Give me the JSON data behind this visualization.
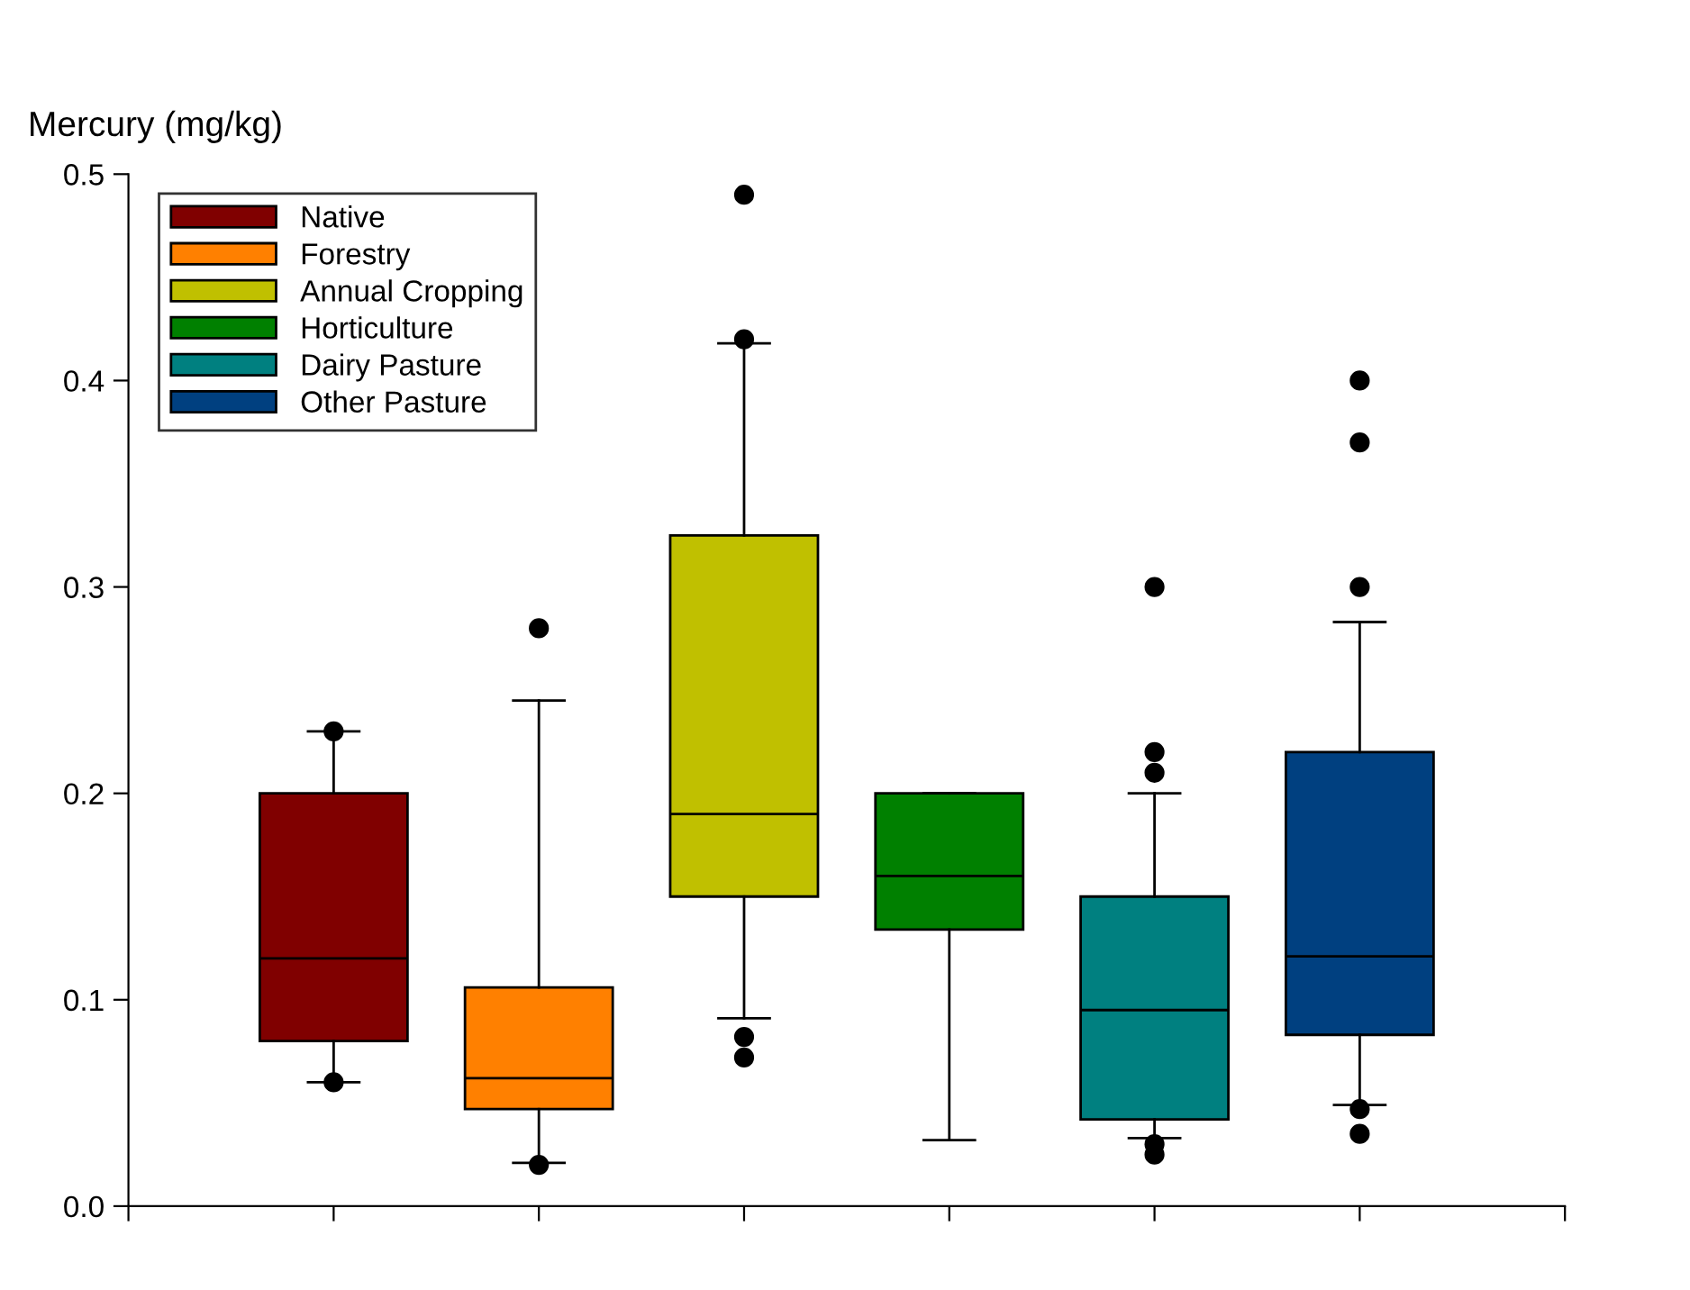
{
  "chart_data": {
    "type": "box",
    "ylabel": "Mercury (mg/kg)",
    "categories": [
      null
    ],
    "ylim": [
      0,
      0.5
    ],
    "yticks": [
      {
        "value": 0,
        "label": "0.0"
      },
      0.1,
      0.2,
      0.3,
      0.4,
      0.5
    ],
    "grid": false,
    "legend": "top left",
    "marker": "circle",
    "series": [
      {
        "name": "Native",
        "color": "#800000",
        "boxes": [
          {
            "low": 0.06,
            "q1": 0.08,
            "median": 0.12,
            "q3": 0.2,
            "high": 0.23,
            "outliers": [
              0.23,
              0.06
            ]
          }
        ]
      },
      {
        "name": "Forestry",
        "color": "#ff8000",
        "boxes": [
          {
            "low": 0.021,
            "q1": 0.047,
            "median": 0.062,
            "q3": 0.106,
            "high": 0.245,
            "outliers": [
              0.28,
              0.02
            ]
          }
        ]
      },
      {
        "name": "Annual Cropping",
        "color": "#c0c000",
        "boxes": [
          {
            "low": 0.091,
            "q1": 0.15,
            "median": 0.19,
            "q3": 0.325,
            "high": 0.418,
            "outliers": [
              0.49,
              0.42,
              0.082,
              0.072
            ]
          }
        ]
      },
      {
        "name": "Horticulture",
        "color": "#008000",
        "boxes": [
          {
            "low": 0.032,
            "q1": 0.134,
            "median": 0.16,
            "q3": 0.2,
            "high": 0.2
          }
        ]
      },
      {
        "name": "Dairy Pasture",
        "color": "#008080",
        "boxes": [
          {
            "low": 0.033,
            "q1": 0.042,
            "median": 0.095,
            "q3": 0.15,
            "high": 0.2,
            "outliers": [
              0.3,
              0.22,
              0.21,
              0.03,
              0.025
            ]
          }
        ]
      },
      {
        "name": "Other Pasture",
        "color": "#004080",
        "boxes": [
          {
            "low": 0.049,
            "q1": 0.083,
            "median": 0.121,
            "q3": 0.22,
            "high": 0.283,
            "outliers": [
              0.4,
              0.37,
              0.3,
              0.047,
              0.035
            ]
          }
        ]
      }
    ]
  }
}
